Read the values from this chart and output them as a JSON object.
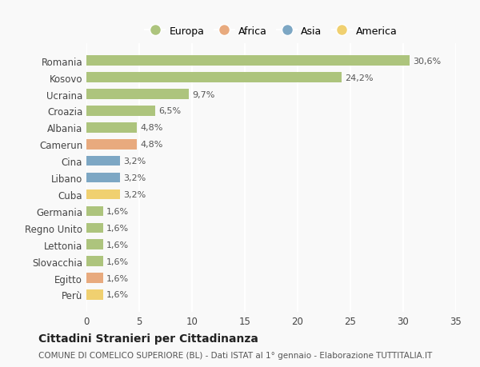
{
  "countries": [
    "Romania",
    "Kosovo",
    "Ucraina",
    "Croazia",
    "Albania",
    "Camerun",
    "Cina",
    "Libano",
    "Cuba",
    "Germania",
    "Regno Unito",
    "Lettonia",
    "Slovacchia",
    "Egitto",
    "Perù"
  ],
  "values": [
    30.6,
    24.2,
    9.7,
    6.5,
    4.8,
    4.8,
    3.2,
    3.2,
    3.2,
    1.6,
    1.6,
    1.6,
    1.6,
    1.6,
    1.6
  ],
  "labels": [
    "30,6%",
    "24,2%",
    "9,7%",
    "6,5%",
    "4,8%",
    "4,8%",
    "3,2%",
    "3,2%",
    "3,2%",
    "1,6%",
    "1,6%",
    "1,6%",
    "1,6%",
    "1,6%",
    "1,6%"
  ],
  "colors": [
    "#adc47d",
    "#adc47d",
    "#adc47d",
    "#adc47d",
    "#adc47d",
    "#e8aa7e",
    "#7da7c4",
    "#7da7c4",
    "#f0d070",
    "#adc47d",
    "#adc47d",
    "#adc47d",
    "#adc47d",
    "#e8aa7e",
    "#f0d070"
  ],
  "legend_labels": [
    "Europa",
    "Africa",
    "Asia",
    "America"
  ],
  "legend_colors": [
    "#adc47d",
    "#e8aa7e",
    "#7da7c4",
    "#f0d070"
  ],
  "title": "Cittadini Stranieri per Cittadinanza",
  "subtitle": "COMUNE DI COMELICO SUPERIORE (BL) - Dati ISTAT al 1° gennaio - Elaborazione TUTTITALIA.IT",
  "xlim": [
    0,
    35
  ],
  "xticks": [
    0,
    5,
    10,
    15,
    20,
    25,
    30,
    35
  ],
  "bg_color": "#f9f9f9",
  "grid_color": "#ffffff",
  "bar_height": 0.6
}
